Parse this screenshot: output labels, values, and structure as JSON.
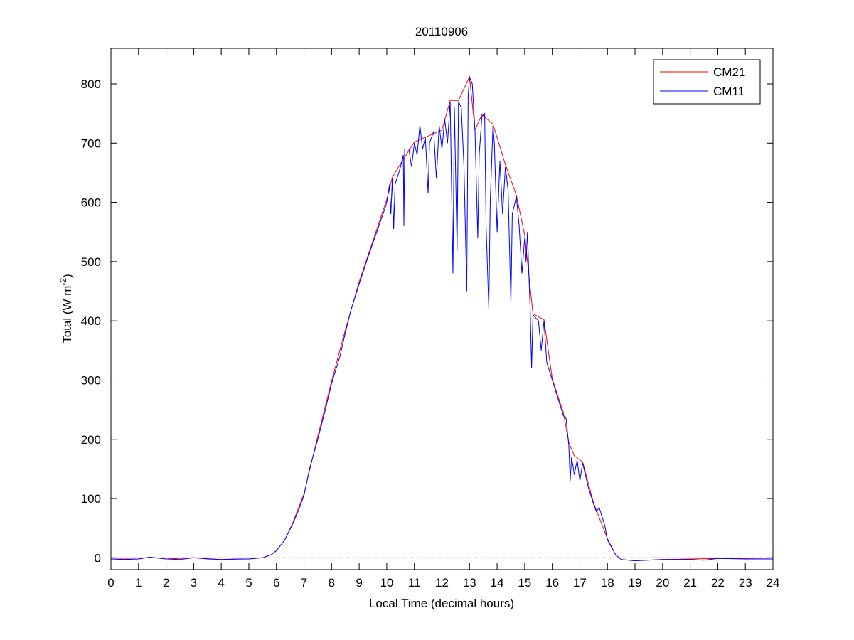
{
  "chart_data": {
    "type": "line",
    "title": "20110906",
    "xlabel": "Local Time (decimal hours)",
    "ylabel_main": "Total (W m",
    "ylabel_sup": "-2",
    "ylabel_close": ")",
    "xlim": [
      0,
      24
    ],
    "ylim": [
      -20,
      860
    ],
    "xticks": [
      0,
      1,
      2,
      3,
      4,
      5,
      6,
      7,
      8,
      9,
      10,
      11,
      12,
      13,
      14,
      15,
      16,
      17,
      18,
      19,
      20,
      21,
      22,
      23,
      24
    ],
    "yticks": [
      0,
      100,
      200,
      300,
      400,
      500,
      600,
      700,
      800
    ],
    "legend_position": "top-right",
    "reference_line": {
      "y": 0,
      "style": "dashed",
      "color": "#ff0000"
    },
    "series": [
      {
        "name": "CM21",
        "color": "#ff0000",
        "points": [
          [
            0,
            -2
          ],
          [
            1,
            -2
          ],
          [
            1.4,
            1
          ],
          [
            2,
            -2
          ],
          [
            3,
            0
          ],
          [
            4,
            -3
          ],
          [
            5,
            -2
          ],
          [
            5.5,
            0
          ],
          [
            5.8,
            5
          ],
          [
            6,
            12
          ],
          [
            6.3,
            30
          ],
          [
            6.6,
            60
          ],
          [
            7,
            108
          ],
          [
            7.5,
            205
          ],
          [
            8,
            298
          ],
          [
            8.5,
            385
          ],
          [
            9,
            466
          ],
          [
            9.5,
            535
          ],
          [
            10,
            605
          ],
          [
            10.2,
            642
          ],
          [
            10.5,
            665
          ],
          [
            11,
            702
          ],
          [
            11.5,
            712
          ],
          [
            12,
            722
          ],
          [
            12.3,
            772
          ],
          [
            12.6,
            772
          ],
          [
            13,
            812
          ],
          [
            13.2,
            722
          ],
          [
            13.45,
            748
          ],
          [
            13.85,
            732
          ],
          [
            14.3,
            664
          ],
          [
            14.7,
            612
          ],
          [
            15,
            545
          ],
          [
            15.3,
            412
          ],
          [
            15.7,
            402
          ],
          [
            16,
            302
          ],
          [
            16.4,
            245
          ],
          [
            16.6,
            195
          ],
          [
            16.8,
            172
          ],
          [
            17.1,
            162
          ],
          [
            17.5,
            92
          ],
          [
            18,
            32
          ],
          [
            18.3,
            5
          ],
          [
            18.5,
            -3
          ],
          [
            19,
            -5
          ],
          [
            20,
            -3
          ],
          [
            22,
            -1
          ],
          [
            24,
            -2
          ]
        ]
      },
      {
        "name": "CM11",
        "color": "#0000ff",
        "points": [
          [
            0,
            -2
          ],
          [
            0.5,
            -3
          ],
          [
            1,
            -2
          ],
          [
            1.4,
            1
          ],
          [
            1.6,
            0
          ],
          [
            2,
            -2
          ],
          [
            2.5,
            -3
          ],
          [
            3,
            0
          ],
          [
            3.5,
            -2
          ],
          [
            4,
            -3
          ],
          [
            4.5,
            -2
          ],
          [
            5,
            -2
          ],
          [
            5.5,
            0
          ],
          [
            5.8,
            5
          ],
          [
            6,
            12
          ],
          [
            6.3,
            30
          ],
          [
            6.6,
            58
          ],
          [
            6.8,
            80
          ],
          [
            7,
            105
          ],
          [
            7.2,
            150
          ],
          [
            7.5,
            200
          ],
          [
            7.8,
            255
          ],
          [
            8,
            294
          ],
          [
            8.3,
            340
          ],
          [
            8.5,
            380
          ],
          [
            8.7,
            418
          ],
          [
            9,
            462
          ],
          [
            9.3,
            505
          ],
          [
            9.6,
            545
          ],
          [
            9.9,
            585
          ],
          [
            10,
            600
          ],
          [
            10.1,
            630
          ],
          [
            10.15,
            580
          ],
          [
            10.2,
            640
          ],
          [
            10.25,
            555
          ],
          [
            10.3,
            630
          ],
          [
            10.5,
            660
          ],
          [
            10.6,
            680
          ],
          [
            10.62,
            560
          ],
          [
            10.65,
            690
          ],
          [
            10.8,
            690
          ],
          [
            10.9,
            660
          ],
          [
            11,
            700
          ],
          [
            11.1,
            680
          ],
          [
            11.2,
            730
          ],
          [
            11.3,
            690
          ],
          [
            11.4,
            710
          ],
          [
            11.5,
            615
          ],
          [
            11.55,
            700
          ],
          [
            11.7,
            720
          ],
          [
            11.8,
            640
          ],
          [
            11.9,
            730
          ],
          [
            12,
            690
          ],
          [
            12.1,
            740
          ],
          [
            12.2,
            700
          ],
          [
            12.3,
            770
          ],
          [
            12.4,
            480
          ],
          [
            12.45,
            760
          ],
          [
            12.55,
            520
          ],
          [
            12.6,
            770
          ],
          [
            12.7,
            760
          ],
          [
            12.8,
            660
          ],
          [
            12.9,
            450
          ],
          [
            12.95,
            780
          ],
          [
            13,
            812
          ],
          [
            13.1,
            800
          ],
          [
            13.2,
            720
          ],
          [
            13.3,
            540
          ],
          [
            13.35,
            680
          ],
          [
            13.45,
            745
          ],
          [
            13.55,
            750
          ],
          [
            13.6,
            560
          ],
          [
            13.7,
            420
          ],
          [
            13.75,
            600
          ],
          [
            13.85,
            730
          ],
          [
            13.9,
            700
          ],
          [
            14,
            550
          ],
          [
            14.1,
            670
          ],
          [
            14.2,
            580
          ],
          [
            14.3,
            660
          ],
          [
            14.4,
            620
          ],
          [
            14.5,
            430
          ],
          [
            14.55,
            580
          ],
          [
            14.7,
            610
          ],
          [
            14.8,
            560
          ],
          [
            14.9,
            480
          ],
          [
            15,
            540
          ],
          [
            15.05,
            500
          ],
          [
            15.1,
            550
          ],
          [
            15.15,
            480
          ],
          [
            15.2,
            420
          ],
          [
            15.25,
            320
          ],
          [
            15.3,
            410
          ],
          [
            15.5,
            400
          ],
          [
            15.6,
            350
          ],
          [
            15.7,
            400
          ],
          [
            15.8,
            330
          ],
          [
            16,
            300
          ],
          [
            16.2,
            270
          ],
          [
            16.4,
            240
          ],
          [
            16.5,
            235
          ],
          [
            16.6,
            190
          ],
          [
            16.65,
            130
          ],
          [
            16.7,
            170
          ],
          [
            16.8,
            140
          ],
          [
            16.9,
            165
          ],
          [
            17,
            130
          ],
          [
            17.1,
            160
          ],
          [
            17.2,
            140
          ],
          [
            17.3,
            120
          ],
          [
            17.5,
            90
          ],
          [
            17.6,
            78
          ],
          [
            17.7,
            85
          ],
          [
            17.9,
            55
          ],
          [
            18,
            30
          ],
          [
            18.3,
            5
          ],
          [
            18.5,
            -3
          ],
          [
            19,
            -5
          ],
          [
            20,
            -3
          ],
          [
            21,
            -3
          ],
          [
            21.5,
            -4
          ],
          [
            22,
            -1
          ],
          [
            23,
            -2
          ],
          [
            24,
            -2
          ]
        ]
      }
    ]
  }
}
